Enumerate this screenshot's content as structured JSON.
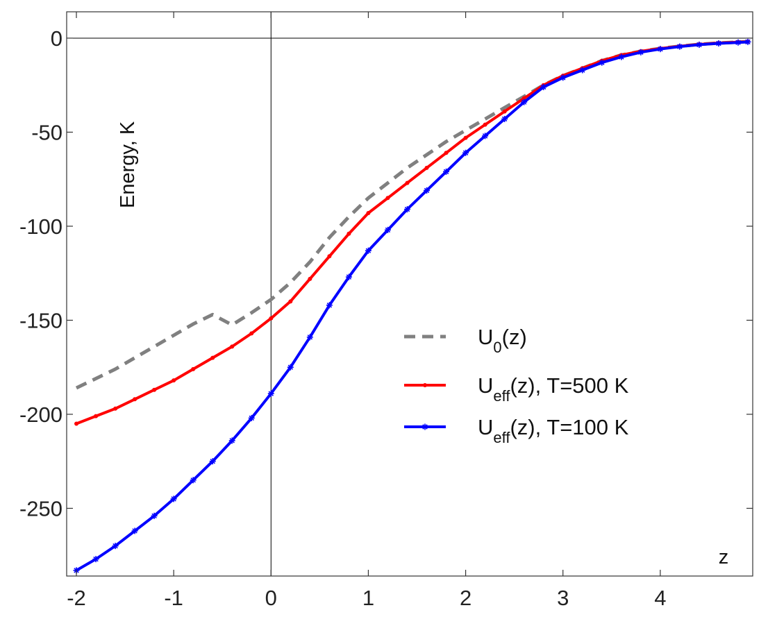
{
  "chart_data": {
    "type": "line",
    "xlabel": "z",
    "ylabel": "Energy, K",
    "xlim": [
      -2.1,
      4.95
    ],
    "ylim": [
      -286,
      14
    ],
    "x_ticks": [
      -2,
      -1,
      0,
      1,
      2,
      3,
      4
    ],
    "y_ticks": [
      0,
      -50,
      -100,
      -150,
      -200,
      -250
    ],
    "x_tick_labels": [
      "-2",
      "-1",
      "0",
      "1",
      "2",
      "3",
      "4"
    ],
    "y_tick_labels": [
      "0",
      "-50",
      "-100",
      "-150",
      "-200",
      "-250"
    ],
    "reference_lines": {
      "horizontal_y": 0,
      "vertical_x": 0
    },
    "grid": false,
    "legend_position": "center-right",
    "series": [
      {
        "name": "U0(z)",
        "legend": {
          "main": "U",
          "sub": "0",
          "rest": "(z)"
        },
        "color": "#808080",
        "style": "dashed",
        "marker": "none",
        "x": [
          -2.0,
          -1.8,
          -1.6,
          -1.4,
          -1.2,
          -1.0,
          -0.8,
          -0.6,
          -0.4,
          -0.2,
          0.0,
          0.2,
          0.4,
          0.6,
          0.8,
          1.0,
          1.2,
          1.4,
          1.6,
          1.8,
          2.0,
          2.2,
          2.4,
          2.6,
          2.8,
          3.0,
          3.2,
          3.4,
          3.6,
          3.8,
          4.0,
          4.2,
          4.4,
          4.6,
          4.8,
          4.9
        ],
        "y": [
          -186,
          -181,
          -176,
          -170,
          -164,
          -158,
          -152,
          -147,
          -152.5,
          -146,
          -139,
          -130,
          -119,
          -106,
          -95,
          -85,
          -77,
          -69,
          -62,
          -55,
          -49,
          -43,
          -37,
          -31,
          -25,
          -20,
          -16,
          -12,
          -9,
          -7,
          -5.5,
          -4.3,
          -3.3,
          -2.6,
          -2.1,
          -1.9
        ]
      },
      {
        "name": "Ueff(z), T=500 K",
        "legend": {
          "main": "U",
          "sub": "eff",
          "rest": "(z), T=500 K"
        },
        "color": "#ff0000",
        "style": "solid",
        "marker": "dot",
        "x": [
          -2.0,
          -1.8,
          -1.6,
          -1.4,
          -1.2,
          -1.0,
          -0.8,
          -0.6,
          -0.4,
          -0.2,
          0.0,
          0.2,
          0.4,
          0.6,
          0.8,
          1.0,
          1.2,
          1.4,
          1.6,
          1.8,
          2.0,
          2.2,
          2.4,
          2.6,
          2.8,
          3.0,
          3.2,
          3.4,
          3.6,
          3.8,
          4.0,
          4.2,
          4.4,
          4.6,
          4.8,
          4.9
        ],
        "y": [
          -205,
          -201,
          -197,
          -192,
          -187,
          -182,
          -176,
          -170,
          -164,
          -157,
          -149,
          -140,
          -128,
          -116,
          -104,
          -93,
          -85,
          -77,
          -69,
          -61,
          -53,
          -46,
          -39,
          -32,
          -25,
          -20,
          -16,
          -12,
          -9,
          -7,
          -5.5,
          -4.3,
          -3.3,
          -2.6,
          -2.1,
          -1.9
        ]
      },
      {
        "name": "Ueff(z), T=100 K",
        "legend": {
          "main": "U",
          "sub": "eff",
          "rest": "(z), T=100 K"
        },
        "color": "#0000ff",
        "style": "solid",
        "marker": "asterisk",
        "x": [
          -2.0,
          -1.8,
          -1.6,
          -1.4,
          -1.2,
          -1.0,
          -0.8,
          -0.6,
          -0.4,
          -0.2,
          0.0,
          0.2,
          0.4,
          0.6,
          0.8,
          1.0,
          1.2,
          1.4,
          1.6,
          1.8,
          2.0,
          2.2,
          2.4,
          2.6,
          2.8,
          3.0,
          3.2,
          3.4,
          3.6,
          3.8,
          4.0,
          4.2,
          4.4,
          4.6,
          4.8,
          4.9
        ],
        "y": [
          -283,
          -277,
          -270,
          -262,
          -254,
          -245,
          -235,
          -225,
          -214,
          -202,
          -189,
          -175,
          -159,
          -142,
          -127,
          -113,
          -102,
          -91,
          -81,
          -71,
          -61,
          -52,
          -43,
          -34,
          -26,
          -21,
          -17,
          -13,
          -10,
          -7.5,
          -5.8,
          -4.5,
          -3.5,
          -2.8,
          -2.3,
          -2.0
        ]
      }
    ]
  }
}
